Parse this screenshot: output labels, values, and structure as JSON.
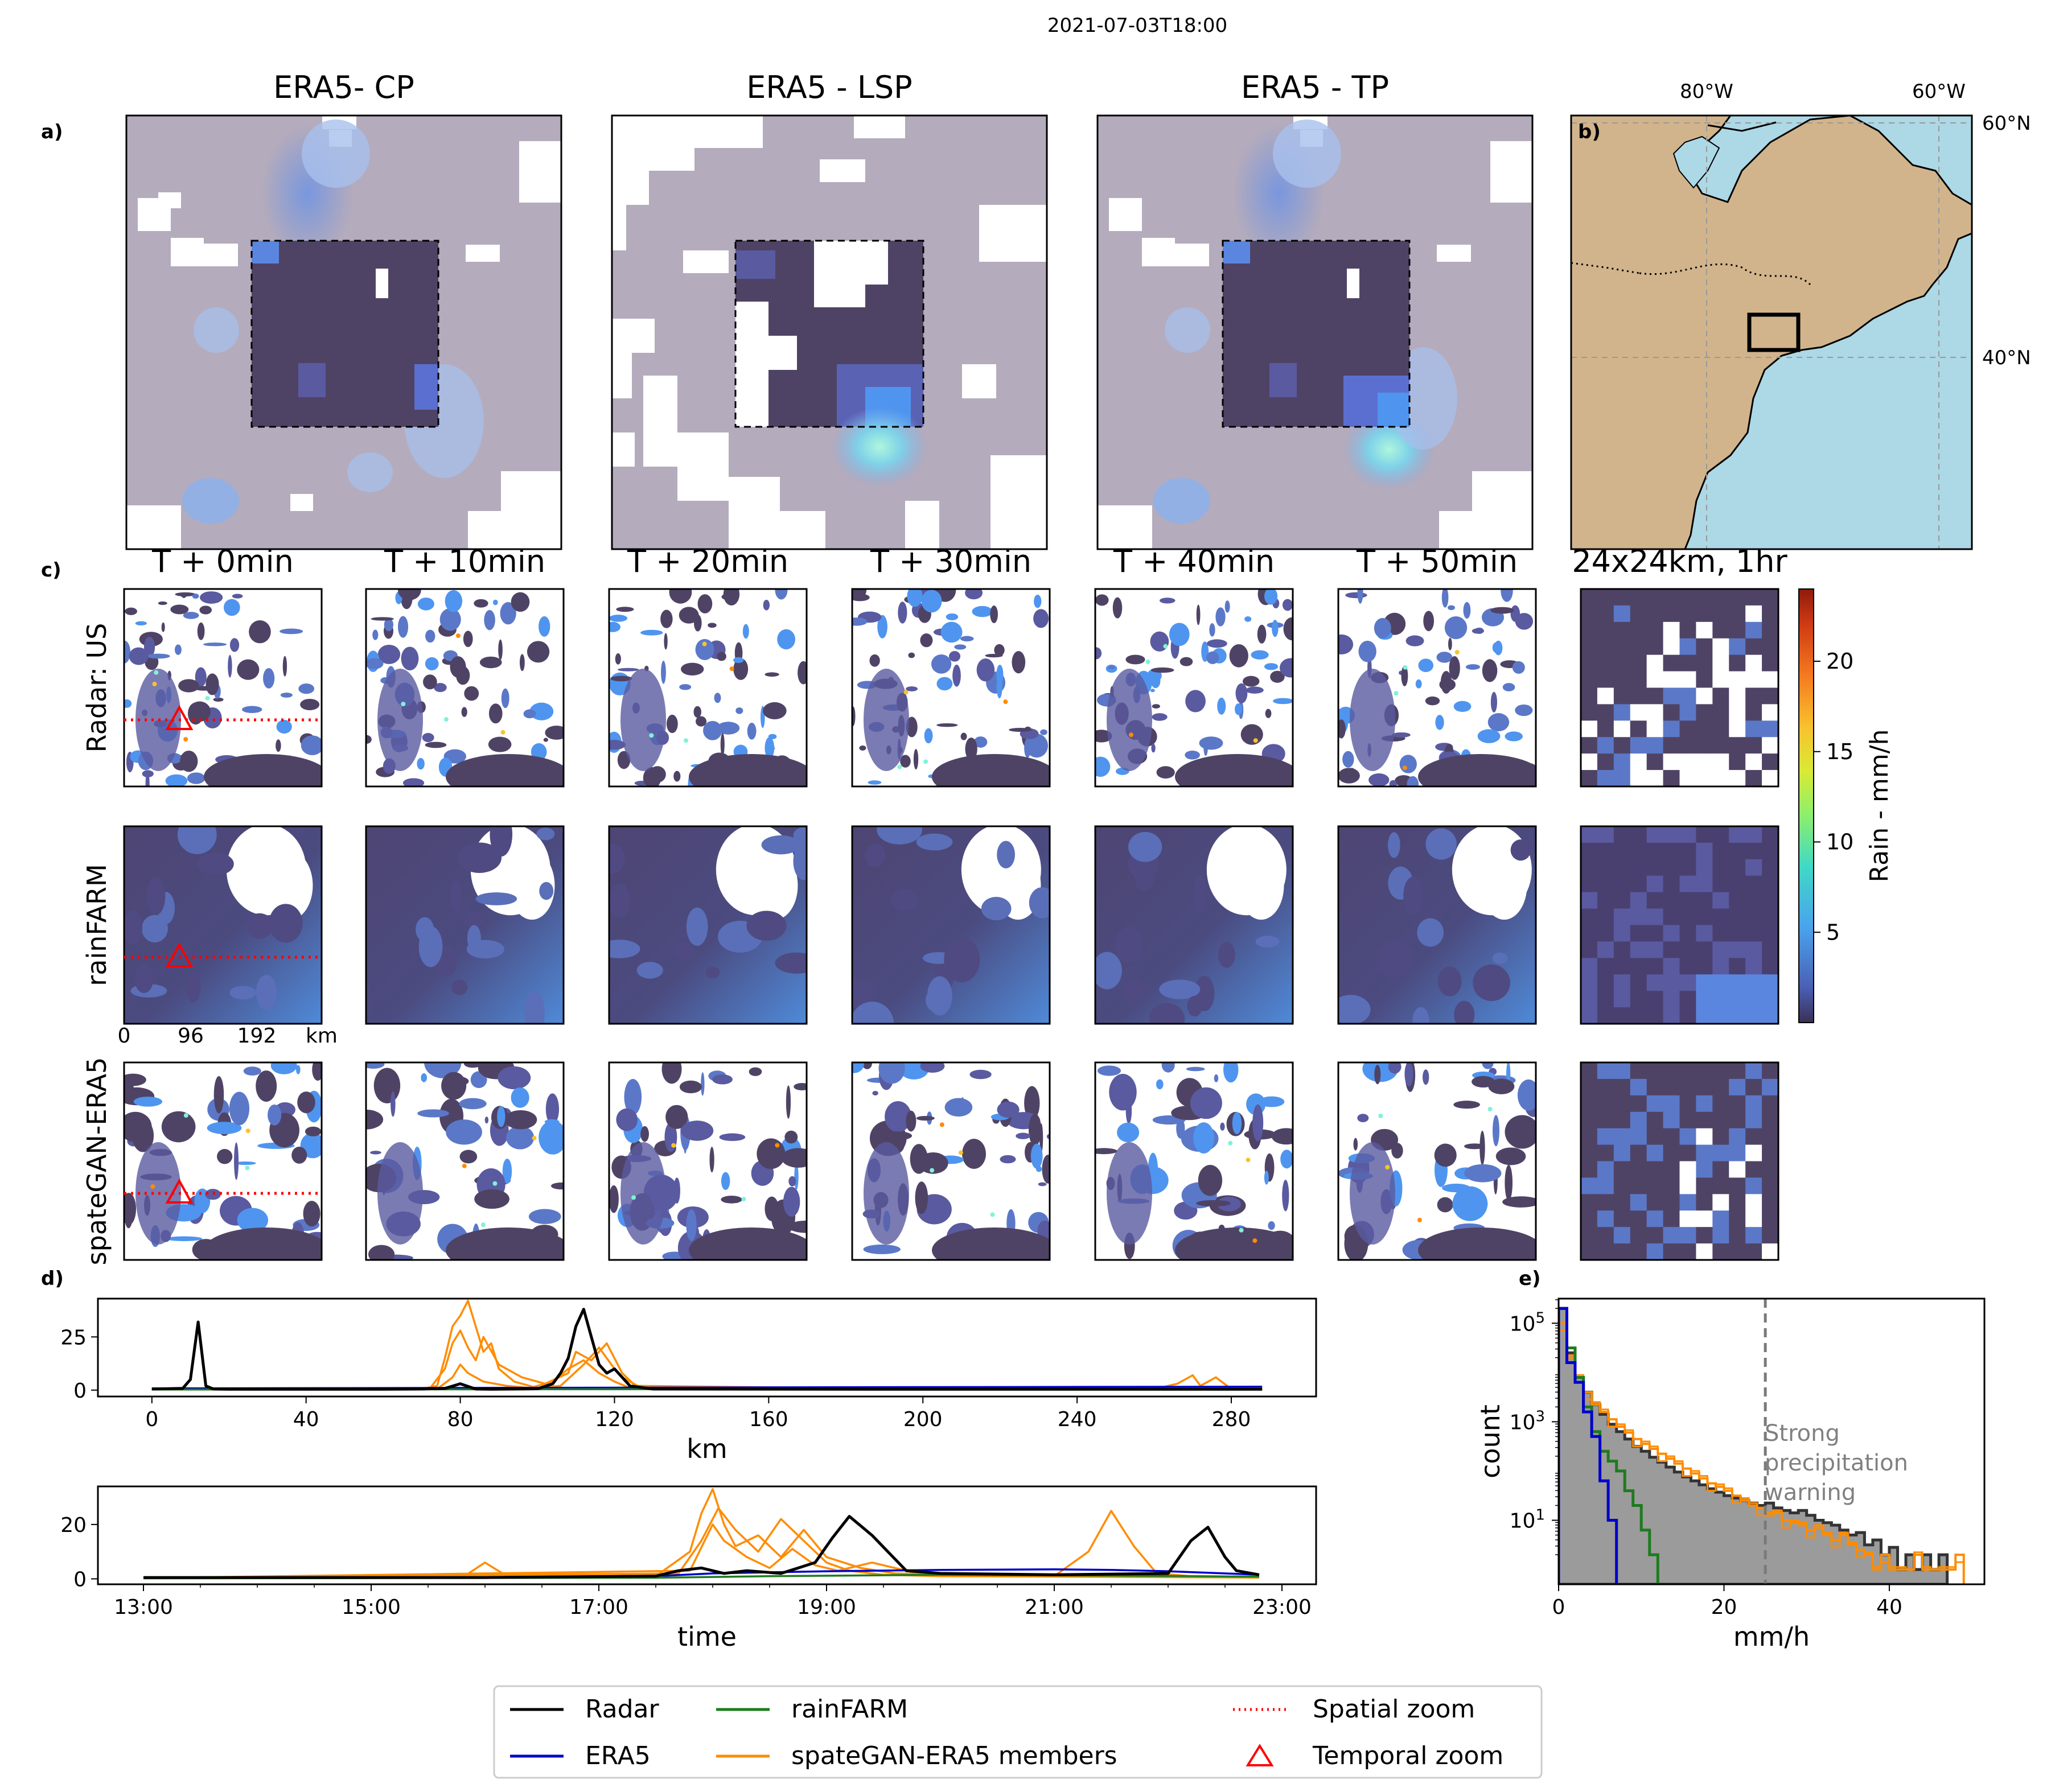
{
  "figure_title": "2021-07-03T18:00",
  "panel_letters": {
    "a": "a)",
    "b": "b)",
    "c": "c)",
    "d": "d)",
    "e": "e)"
  },
  "colors": {
    "background_field": "#b4abbc",
    "low_rain": "#4f4365",
    "mid_rain": "#5b78c8",
    "light_blue": "#9fb8ea",
    "bright": "#7ff2d8",
    "ocean": "#add8e6",
    "land": "#d2b48c",
    "radar": "#000000",
    "era5": "#0000cc",
    "rainfarm": "#1e7b1e",
    "spategan": "#ff8c00",
    "zoom": "#ff0000",
    "hist_fill": "#9b9b9b",
    "hist_edge": "#333333"
  },
  "era5_panels": {
    "titles": [
      "ERA5- CP",
      "ERA5 - LSP",
      "ERA5 - TP"
    ]
  },
  "map": {
    "lon_labels": [
      "80°W",
      "60°W"
    ],
    "lat_labels": [
      "60°N",
      "40°N"
    ]
  },
  "radar_grid": {
    "time_titles": [
      "T + 0min",
      "T + 10min",
      "T + 20min",
      "T + 30min",
      "T + 40min",
      "T + 50min",
      "24x24km, 1hr"
    ],
    "row_labels": [
      "Radar: US",
      "rainFARM",
      "spateGAN-ERA5"
    ],
    "scale_ticks": [
      "0",
      "96",
      "192",
      "km"
    ],
    "zoom_marker_icon": "triangle-icon"
  },
  "colorbar": {
    "label": "Rain - mm/h",
    "ticks": [
      5,
      10,
      15,
      20
    ],
    "range": [
      0,
      24
    ]
  },
  "chart_data": [
    {
      "type": "line",
      "id": "spatial-profile",
      "xlabel": "km",
      "ylabel": "mm/h",
      "xlim": [
        -14,
        302
      ],
      "ylim": [
        -3,
        43
      ],
      "xticks": [
        0,
        40,
        80,
        120,
        160,
        200,
        240,
        280
      ],
      "yticks": [
        0,
        25
      ],
      "series": [
        {
          "name": "Radar",
          "color": "#000000",
          "x": [
            0,
            8,
            10,
            12,
            14,
            16,
            20,
            60,
            70,
            76,
            80,
            84,
            88,
            100,
            104,
            106,
            108,
            110,
            112,
            114,
            116,
            118,
            120,
            122,
            124,
            130,
            200,
            288
          ],
          "y": [
            0.5,
            0.8,
            5,
            32,
            2,
            0.5,
            0.4,
            0.4,
            0.5,
            0.8,
            3,
            0.5,
            0.4,
            0.6,
            3,
            8,
            15,
            30,
            38,
            25,
            12,
            8,
            10,
            6,
            2,
            0.5,
            0.4,
            0.4
          ]
        },
        {
          "name": "ERA5",
          "color": "#0000cc",
          "x": [
            0,
            100,
            200,
            288
          ],
          "y": [
            0.8,
            1.1,
            1.4,
            1.6
          ]
        },
        {
          "name": "rainFARM",
          "color": "#1e7b1e",
          "x": [
            0,
            100,
            200,
            288
          ],
          "y": [
            0.3,
            0.4,
            0.5,
            0.6
          ]
        },
        {
          "name": "spateGAN-ERA5 member 1",
          "color": "#ff8c00",
          "x": [
            0,
            70,
            74,
            76,
            78,
            80,
            82,
            84,
            86,
            88,
            90,
            94,
            100,
            106,
            112,
            116,
            118,
            120,
            122,
            126,
            200,
            260,
            266,
            270,
            272,
            276,
            280,
            288
          ],
          "y": [
            0.3,
            0.5,
            2,
            15,
            30,
            35,
            42,
            30,
            18,
            22,
            10,
            4,
            1,
            2,
            12,
            20,
            15,
            10,
            6,
            2,
            0.5,
            0.5,
            3,
            7,
            2,
            6,
            0.5,
            0.5
          ]
        },
        {
          "name": "spateGAN-ERA5 member 2",
          "color": "#ff8c00",
          "x": [
            0,
            72,
            76,
            78,
            80,
            82,
            84,
            86,
            90,
            96,
            102,
            108,
            110,
            114,
            118,
            122,
            126,
            288
          ],
          "y": [
            0.3,
            0.5,
            10,
            22,
            28,
            20,
            14,
            25,
            12,
            6,
            3,
            8,
            18,
            14,
            22,
            8,
            1,
            0.4
          ]
        },
        {
          "name": "spateGAN-ERA5 member 3",
          "color": "#ff8c00",
          "x": [
            0,
            74,
            78,
            80,
            82,
            86,
            92,
            98,
            104,
            108,
            112,
            116,
            120,
            124,
            288
          ],
          "y": [
            0.3,
            0.5,
            6,
            12,
            8,
            4,
            2,
            1,
            4,
            10,
            14,
            8,
            4,
            1,
            0.4
          ]
        }
      ]
    },
    {
      "type": "line",
      "id": "temporal-profile",
      "xlabel": "time",
      "ylabel": "mm/h",
      "xlim": [
        12.6,
        23.3
      ],
      "ylim": [
        -2,
        34
      ],
      "xticks": [
        13,
        15,
        17,
        19,
        21,
        23
      ],
      "xtick_labels": [
        "13:00",
        "15:00",
        "17:00",
        "19:00",
        "21:00",
        "23:00"
      ],
      "yticks": [
        0,
        20
      ],
      "series": [
        {
          "name": "Radar",
          "color": "#000000",
          "x": [
            13,
            16,
            17.5,
            17.7,
            17.9,
            18.1,
            18.3,
            18.6,
            18.9,
            19.05,
            19.2,
            19.4,
            19.7,
            20,
            21,
            22,
            22.2,
            22.35,
            22.5,
            22.6,
            22.8
          ],
          "y": [
            0.5,
            0.5,
            1,
            3,
            4,
            2,
            3,
            2,
            6,
            15,
            23,
            16,
            3,
            2,
            1.5,
            2,
            14,
            19,
            8,
            3,
            1.5
          ]
        },
        {
          "name": "ERA5",
          "color": "#0000cc",
          "x": [
            13,
            16,
            17.6,
            18,
            19,
            20,
            21,
            21.5,
            22,
            22.5,
            22.8
          ],
          "y": [
            0.3,
            0.4,
            1.2,
            2,
            2.8,
            3.3,
            3.5,
            3.3,
            2.8,
            2,
            1.5
          ]
        },
        {
          "name": "rainFARM",
          "color": "#1e7b1e",
          "x": [
            13,
            17.5,
            18.5,
            20,
            21.5,
            22.8
          ],
          "y": [
            0.2,
            0.4,
            1,
            1.5,
            1.2,
            0.8
          ]
        },
        {
          "name": "spateGAN-ERA5 member 1",
          "color": "#ff8c00",
          "x": [
            13,
            15.8,
            16,
            16.2,
            17.5,
            17.8,
            17.9,
            18,
            18.1,
            18.2,
            18.4,
            18.6,
            18.8,
            19,
            19.3,
            19.6,
            20,
            21,
            21.3,
            21.5,
            21.7,
            21.9,
            22.2,
            22.8
          ],
          "y": [
            0.4,
            0.5,
            6,
            0.8,
            1,
            10,
            24,
            33,
            20,
            12,
            16,
            8,
            18,
            8,
            4,
            2,
            1.5,
            1,
            10,
            25,
            12,
            2,
            1,
            0.5
          ]
        },
        {
          "name": "spateGAN-ERA5 member 2",
          "color": "#ff8c00",
          "x": [
            13,
            17.7,
            17.9,
            18.05,
            18.2,
            18.4,
            18.6,
            18.8,
            19,
            19.2,
            19.5,
            20,
            22.8
          ],
          "y": [
            0.3,
            2,
            14,
            26,
            18,
            10,
            22,
            14,
            6,
            3,
            1.5,
            1,
            0.5
          ]
        },
        {
          "name": "spateGAN-ERA5 member 3",
          "color": "#ff8c00",
          "x": [
            13,
            17.8,
            18,
            18.1,
            18.3,
            18.5,
            18.7,
            18.9,
            19.1,
            19.4,
            19.8,
            20.5,
            22.8
          ],
          "y": [
            0.3,
            3,
            20,
            14,
            8,
            4,
            11,
            5,
            3,
            6,
            2,
            1,
            0.5
          ]
        }
      ]
    },
    {
      "type": "histogram",
      "id": "intensity-histogram",
      "xlabel": "mm/h",
      "ylabel": "count",
      "yscale": "log",
      "xlim": [
        0,
        51.5
      ],
      "ylim_log10": [
        -0.3,
        5.5
      ],
      "xticks": [
        0,
        20,
        40
      ],
      "ytick_labels": [
        "10^1",
        "10^3",
        "10^5"
      ],
      "yticks_log10": [
        1,
        3,
        5
      ],
      "bin_width": 1,
      "threshold": {
        "x": 25,
        "label_lines": [
          "Strong",
          "precipitation",
          "warning"
        ]
      },
      "series": [
        {
          "name": "Radar",
          "fill": "#9b9b9b",
          "edge": "#333333",
          "log10_counts": [
            5.3,
            4.4,
            3.9,
            3.6,
            3.35,
            3.15,
            2.95,
            2.8,
            2.65,
            2.5,
            2.4,
            2.28,
            2.18,
            2.08,
            1.98,
            1.88,
            1.8,
            1.72,
            1.64,
            1.57,
            1.5,
            1.45,
            1.4,
            1.35,
            1.3,
            1.35,
            1.25,
            1.2,
            1.15,
            1.2,
            1.1,
            1.0,
            0.95,
            0.9,
            0.8,
            0.7,
            0.75,
            0.5,
            0.6,
            0.3,
            0.45,
            0.0,
            0.3,
            0.0,
            0.3,
            0.0,
            0.3
          ]
        },
        {
          "name": "ERA5",
          "color": "#0000cc",
          "log10_counts": [
            5.3,
            4.2,
            3.8,
            3.2,
            2.7,
            1.8,
            1.0
          ]
        },
        {
          "name": "rainFARM",
          "color": "#1e7b1e",
          "log10_counts": [
            5.3,
            4.5,
            3.9,
            3.3,
            2.8,
            2.4,
            2.2,
            2.0,
            1.6,
            1.3,
            0.8,
            0.3
          ]
        },
        {
          "name": "spateGAN-ERA5 members",
          "color": "#ff8c00",
          "log10_counts": [
            5.0,
            4.3,
            3.9,
            3.6,
            3.35,
            3.2,
            3.05,
            2.9,
            2.78,
            2.65,
            2.55,
            2.45,
            2.35,
            2.25,
            2.15,
            2.05,
            1.95,
            1.85,
            1.75,
            1.68,
            1.6,
            1.5,
            1.4,
            1.3,
            1.25,
            1.1,
            1.15,
            1.0,
            0.95,
            0.9,
            0.8,
            0.85,
            0.7,
            0.6,
            0.7,
            0.5,
            0.4,
            0.3,
            0.0,
            0.3,
            0.0,
            0.0,
            0.0,
            0.3,
            0.0,
            0.0,
            0.0,
            0.0,
            0.3
          ]
        }
      ]
    }
  ],
  "legend": {
    "entries": [
      {
        "label": "Radar",
        "color": "#000000",
        "style": "solid"
      },
      {
        "label": "ERA5",
        "color": "#0000cc",
        "style": "solid"
      },
      {
        "label": "rainFARM",
        "color": "#1e7b1e",
        "style": "solid"
      },
      {
        "label": "spateGAN-ERA5 members",
        "color": "#ff8c00",
        "style": "solid"
      },
      {
        "label": "Spatial zoom",
        "color": "#ff0000",
        "style": "dotted"
      },
      {
        "label": "Temporal zoom",
        "color": "#ff0000",
        "style": "triangle"
      }
    ]
  }
}
